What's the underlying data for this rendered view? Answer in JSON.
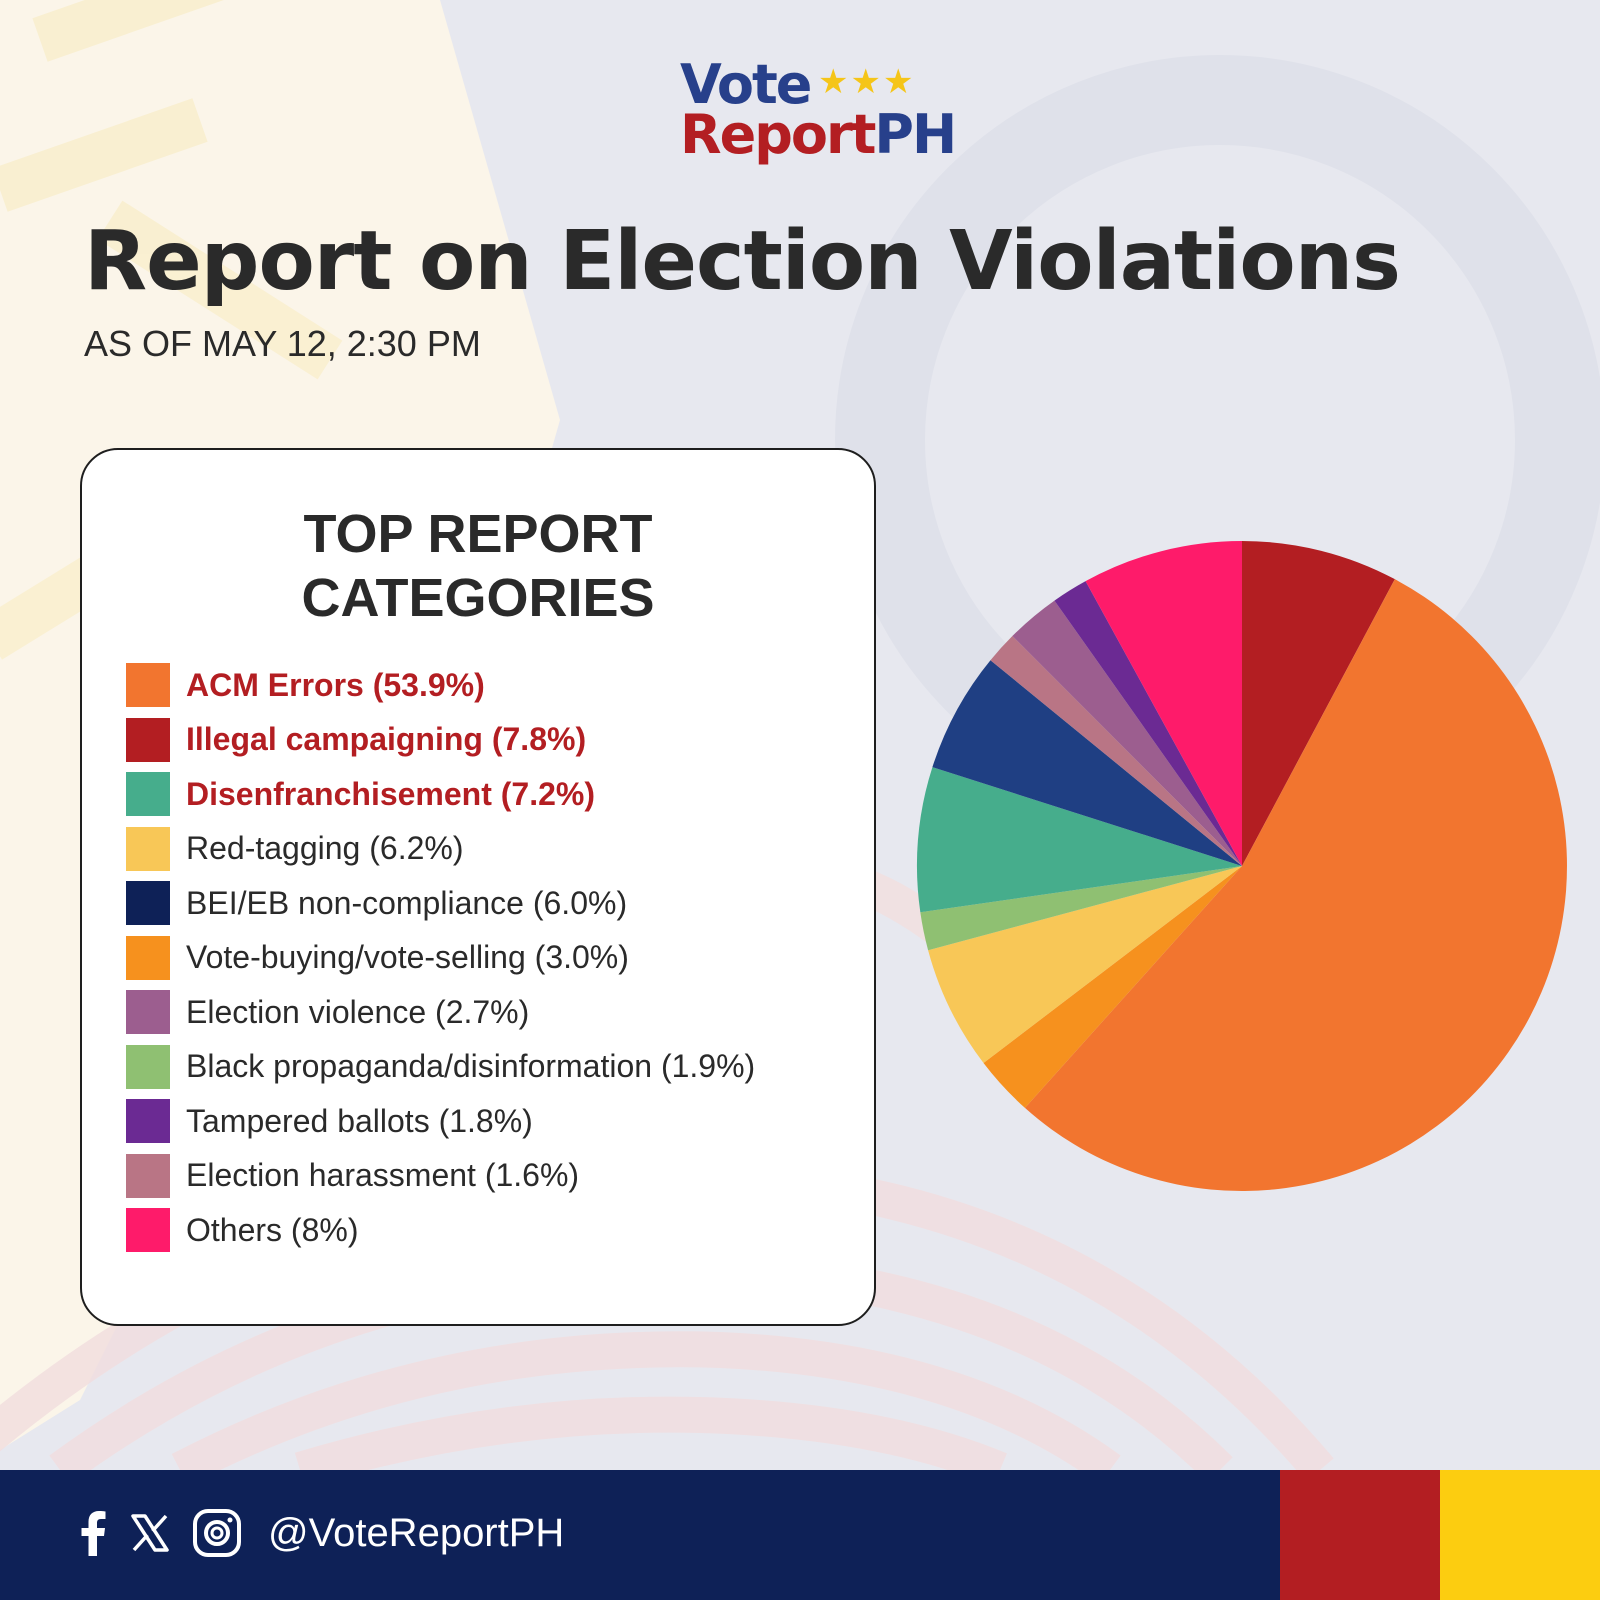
{
  "logo": {
    "line1": "Vote",
    "stars": "★★★",
    "line2_part1": "Report",
    "line2_part2": "PH"
  },
  "title": "Report on Election Violations",
  "subtitle": "AS OF MAY 12, 2:30 PM",
  "legend": {
    "title": "TOP REPORT\nCATEGORIES"
  },
  "chart_data": {
    "type": "pie",
    "title": "TOP REPORT CATEGORIES",
    "slices": [
      {
        "label": "ACM Errors",
        "value": 53.9,
        "display": "ACM Errors (53.9%)",
        "color": "#f2752f",
        "highlight": true
      },
      {
        "label": "Illegal campaigning",
        "value": 7.8,
        "display": "Illegal campaigning (7.8%)",
        "color": "#b31e22",
        "highlight": true
      },
      {
        "label": "Disenfranchisement",
        "value": 7.2,
        "display": "Disenfranchisement (7.2%)",
        "color": "#46ad8c",
        "highlight": true
      },
      {
        "label": "Red-tagging",
        "value": 6.2,
        "display": "Red-tagging (6.2%)",
        "color": "#f8c757",
        "highlight": false
      },
      {
        "label": "BEI/EB non-compliance",
        "value": 6.0,
        "display": "BEI/EB non-compliance (6.0%)",
        "color": "#0e2157",
        "highlight": false
      },
      {
        "label": "Vote-buying/vote-selling",
        "value": 3.0,
        "display": "Vote-buying/vote-selling (3.0%)",
        "color": "#f6911e",
        "highlight": false
      },
      {
        "label": "Election violence",
        "value": 2.7,
        "display": "Election violence (2.7%)",
        "color": "#9c5e8f",
        "highlight": false
      },
      {
        "label": "Black propaganda/disinformation",
        "value": 1.9,
        "display": "Black propaganda/disinformation (1.9%)",
        "color": "#8fc072",
        "highlight": false
      },
      {
        "label": "Tampered ballots",
        "value": 1.8,
        "display": "Tampered ballots (1.8%)",
        "color": "#6b2a93",
        "highlight": false
      },
      {
        "label": "Election harassment",
        "value": 1.6,
        "display": "Election harassment (1.6%)",
        "color": "#b97585",
        "highlight": false
      },
      {
        "label": "Others",
        "value": 8,
        "display": "Others (8%)",
        "color": "#fe1b6a",
        "highlight": false
      }
    ],
    "pie_order": [
      "Illegal campaigning",
      "ACM Errors",
      "Vote-buying/vote-selling",
      "Red-tagging",
      "Black propaganda/disinformation",
      "Disenfranchisement",
      "BEI/EB non-compliance",
      "Election harassment",
      "Election violence",
      "Tampered ballots",
      "Others"
    ],
    "pie_colors": {
      "BEI/EB non-compliance": "#1f3f83"
    },
    "start": "12 o'clock, clockwise"
  },
  "footer": {
    "handle": "@VoteReportPH",
    "icons": [
      "facebook-icon",
      "x-icon",
      "instagram-icon"
    ],
    "colors": {
      "navy": "#0e2157",
      "red": "#b31e22",
      "yellow": "#fccd10"
    }
  }
}
